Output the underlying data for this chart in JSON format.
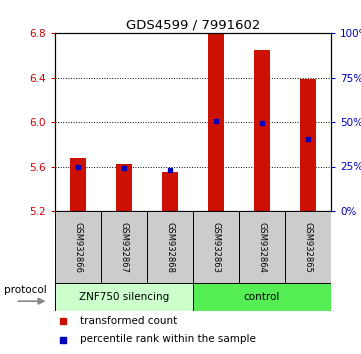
{
  "title": "GDS4599 / 7991602",
  "samples": [
    "GSM932866",
    "GSM932867",
    "GSM932868",
    "GSM932863",
    "GSM932864",
    "GSM932865"
  ],
  "red_bar_bottom": 5.2,
  "red_bar_tops": [
    5.68,
    5.62,
    5.55,
    6.8,
    6.65,
    6.39
  ],
  "blue_marker_values": [
    5.6,
    5.585,
    5.565,
    6.01,
    5.99,
    5.845
  ],
  "ylim_left": [
    5.2,
    6.8
  ],
  "yticks_left": [
    5.2,
    5.6,
    6.0,
    6.4,
    6.8
  ],
  "yticks_right": [
    0,
    25,
    50,
    75,
    100
  ],
  "ylim_right": [
    0,
    100
  ],
  "left_tick_color": "#CC0000",
  "right_tick_color": "#0000BB",
  "bar_color": "#CC1100",
  "blue_color": "#0000BB",
  "legend_red_label": "transformed count",
  "legend_blue_label": "percentile rank within the sample",
  "protocol_label": "protocol",
  "group1_label": "ZNF750 silencing",
  "group2_label": "control",
  "group1_color": "#CCFFCC",
  "group2_color": "#55EE55",
  "sample_bg_color": "#CCCCCC",
  "bar_width": 0.35
}
